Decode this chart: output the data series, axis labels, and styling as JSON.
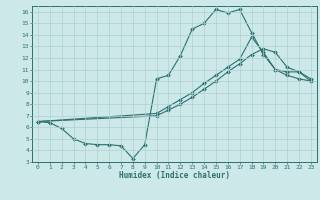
{
  "xlabel": "Humidex (Indice chaleur)",
  "ylabel": "",
  "bg_color": "#cce8e8",
  "line_color": "#2d7070",
  "grid_color": "#b0d0d0",
  "spine_color": "#2d7070",
  "xlim": [
    -0.5,
    23.5
  ],
  "ylim": [
    3,
    16.5
  ],
  "xticks": [
    0,
    1,
    2,
    3,
    4,
    5,
    6,
    7,
    8,
    9,
    10,
    11,
    12,
    13,
    14,
    15,
    16,
    17,
    18,
    19,
    20,
    21,
    22,
    23
  ],
  "yticks": [
    3,
    4,
    5,
    6,
    7,
    8,
    9,
    10,
    11,
    12,
    13,
    14,
    15,
    16
  ],
  "line1_x": [
    0,
    1,
    2,
    3,
    4,
    5,
    6,
    7,
    8,
    9,
    10,
    11,
    12,
    13,
    14,
    15,
    16,
    17,
    18,
    19,
    20,
    21,
    22,
    23
  ],
  "line1_y": [
    6.5,
    6.4,
    5.9,
    5.0,
    4.6,
    4.5,
    4.5,
    4.4,
    3.3,
    4.5,
    10.2,
    10.5,
    12.2,
    14.5,
    15.0,
    16.2,
    15.9,
    16.2,
    14.2,
    12.3,
    11.0,
    10.5,
    10.2,
    10.0
  ],
  "line2_x": [
    0,
    10,
    11,
    12,
    13,
    14,
    15,
    16,
    17,
    18,
    19,
    20,
    21,
    22,
    23
  ],
  "line2_y": [
    6.5,
    7.2,
    7.8,
    8.4,
    9.0,
    9.8,
    10.5,
    11.2,
    11.9,
    13.8,
    12.5,
    11.0,
    10.8,
    10.8,
    10.0
  ],
  "line3_x": [
    0,
    10,
    11,
    12,
    13,
    14,
    15,
    16,
    17,
    18,
    19,
    20,
    21,
    22,
    23
  ],
  "line3_y": [
    6.5,
    7.0,
    7.5,
    8.0,
    8.6,
    9.3,
    10.0,
    10.8,
    11.5,
    12.3,
    12.8,
    12.5,
    11.2,
    10.8,
    10.2
  ]
}
